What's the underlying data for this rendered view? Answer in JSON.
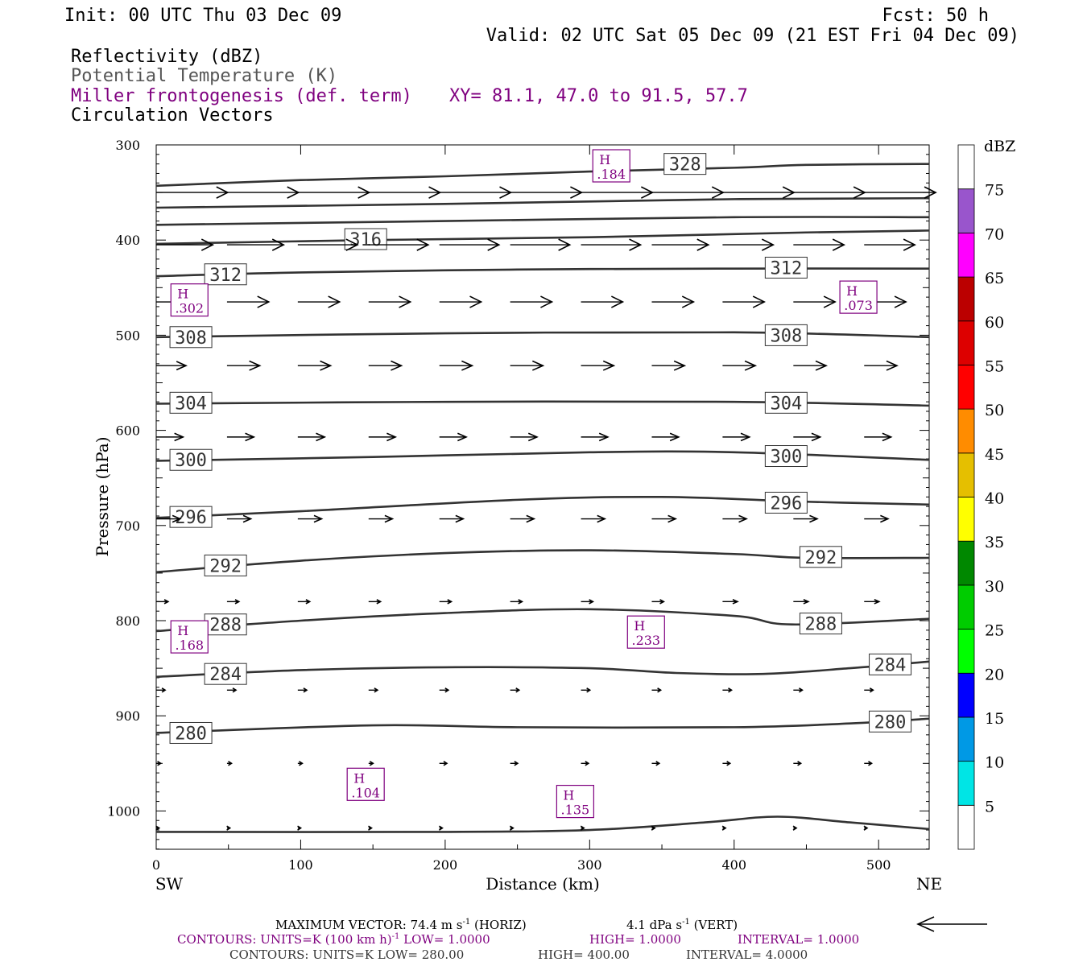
{
  "header": {
    "init": "Init: 00 UTC Thu 03 Dec 09",
    "fcst": "Fcst:   50 h",
    "valid": "Valid: 02 UTC Sat 05 Dec 09 (21 EST Fri 04 Dec 09)",
    "field1": "Reflectivity (dBZ)",
    "field2": "Potential Temperature (K)",
    "field3": "Miller frontogenesis (def. term)",
    "xy": "XY=  81.1, 47.0 to  91.5, 57.7",
    "field4": "Circulation Vectors"
  },
  "colors": {
    "purple": "#7f007f",
    "gray": "#555555",
    "contour": "#333333"
  },
  "chart_data": {
    "type": "cross-section",
    "xlabel": "Distance (km)",
    "ylabel": "Pressure (hPa)",
    "xlim": [
      0,
      535
    ],
    "ylim": [
      1040,
      300
    ],
    "x_ticks": [
      0,
      100,
      200,
      300,
      400,
      500
    ],
    "y_ticks": [
      300,
      400,
      500,
      600,
      700,
      800,
      900,
      1000
    ],
    "left_end_label": "SW",
    "right_end_label": "NE",
    "theta_contours": [
      {
        "label": "328",
        "points": [
          [
            0,
            343
          ],
          [
            100,
            337
          ],
          [
            200,
            333
          ],
          [
            300,
            328
          ],
          [
            400,
            324
          ],
          [
            450,
            321
          ],
          [
            535,
            320
          ]
        ],
        "label_at": [
          [
            366,
            320
          ]
        ]
      },
      {
        "label": "",
        "points": [
          [
            0,
            366
          ],
          [
            200,
            362
          ],
          [
            400,
            357
          ],
          [
            535,
            356
          ]
        ],
        "label_at": []
      },
      {
        "label": "",
        "points": [
          [
            0,
            384
          ],
          [
            200,
            380
          ],
          [
            400,
            376
          ],
          [
            535,
            376
          ]
        ],
        "label_at": []
      },
      {
        "label": "316",
        "points": [
          [
            0,
            404
          ],
          [
            150,
            400
          ],
          [
            300,
            397
          ],
          [
            450,
            392
          ],
          [
            535,
            390
          ]
        ],
        "label_at": [
          [
            145,
            399
          ]
        ]
      },
      {
        "label": "312",
        "points": [
          [
            0,
            438
          ],
          [
            100,
            434
          ],
          [
            250,
            431
          ],
          [
            400,
            430
          ],
          [
            535,
            430
          ]
        ],
        "label_at": [
          [
            48,
            436
          ],
          [
            436,
            429
          ]
        ]
      },
      {
        "label": "308",
        "points": [
          [
            0,
            502
          ],
          [
            200,
            498
          ],
          [
            400,
            497
          ],
          [
            535,
            502
          ]
        ],
        "label_at": [
          [
            24,
            502
          ],
          [
            436,
            500
          ]
        ]
      },
      {
        "label": "304",
        "points": [
          [
            0,
            572
          ],
          [
            200,
            570
          ],
          [
            400,
            570
          ],
          [
            535,
            574
          ]
        ],
        "label_at": [
          [
            24,
            571
          ],
          [
            436,
            571
          ]
        ]
      },
      {
        "label": "300",
        "points": [
          [
            0,
            632
          ],
          [
            150,
            628
          ],
          [
            300,
            623
          ],
          [
            400,
            623
          ],
          [
            535,
            631
          ]
        ],
        "label_at": [
          [
            24,
            631
          ],
          [
            436,
            627
          ]
        ]
      },
      {
        "label": "296",
        "points": [
          [
            0,
            692
          ],
          [
            100,
            685
          ],
          [
            250,
            673
          ],
          [
            350,
            670
          ],
          [
            450,
            675
          ],
          [
            535,
            678
          ]
        ],
        "label_at": [
          [
            24,
            691
          ],
          [
            436,
            676
          ]
        ]
      },
      {
        "label": "292",
        "points": [
          [
            0,
            749
          ],
          [
            100,
            737
          ],
          [
            200,
            729
          ],
          [
            300,
            726
          ],
          [
            400,
            730
          ],
          [
            450,
            734
          ],
          [
            535,
            734
          ]
        ],
        "label_at": [
          [
            48,
            742
          ],
          [
            460,
            733
          ]
        ]
      },
      {
        "label": "288",
        "points": [
          [
            0,
            811
          ],
          [
            100,
            800
          ],
          [
            200,
            792
          ],
          [
            300,
            788
          ],
          [
            400,
            795
          ],
          [
            440,
            804
          ],
          [
            535,
            798
          ]
        ],
        "label_at": [
          [
            48,
            804
          ],
          [
            460,
            803
          ]
        ]
      },
      {
        "label": "284",
        "points": [
          [
            0,
            859
          ],
          [
            100,
            852
          ],
          [
            200,
            849
          ],
          [
            300,
            850
          ],
          [
            360,
            855
          ],
          [
            420,
            856
          ],
          [
            480,
            850
          ],
          [
            535,
            843
          ]
        ],
        "label_at": [
          [
            48,
            856
          ],
          [
            508,
            846
          ]
        ]
      },
      {
        "label": "280",
        "points": [
          [
            0,
            918
          ],
          [
            150,
            910
          ],
          [
            250,
            912
          ],
          [
            400,
            912
          ],
          [
            480,
            908
          ],
          [
            535,
            903
          ]
        ],
        "label_at": [
          [
            24,
            918
          ],
          [
            508,
            906
          ]
        ]
      },
      {
        "label": "",
        "points": [
          [
            0,
            1022
          ],
          [
            200,
            1022
          ],
          [
            300,
            1020
          ],
          [
            380,
            1012
          ],
          [
            430,
            1006
          ],
          [
            480,
            1012
          ],
          [
            535,
            1019
          ]
        ],
        "label_at": []
      }
    ],
    "frontogenesis_maxima": [
      {
        "label": "H",
        "value": ".184",
        "x": 315,
        "p": 322
      },
      {
        "label": "H",
        "value": ".302",
        "x": 23,
        "p": 463
      },
      {
        "label": "H",
        "value": ".073",
        "x": 486,
        "p": 460
      },
      {
        "label": "H",
        "value": ".168",
        "x": 23,
        "p": 817
      },
      {
        "label": "H",
        "value": ".233",
        "x": 339,
        "p": 812
      },
      {
        "label": "H",
        "value": ".104",
        "x": 145,
        "p": 972
      },
      {
        "label": "H",
        "value": ".135",
        "x": 290,
        "p": 990
      }
    ],
    "circulation_vectors": {
      "x": [
        0,
        49,
        98,
        147,
        196,
        245,
        294,
        343,
        392,
        441,
        490
      ],
      "rows": [
        {
          "p": 350,
          "u": [
            48,
            48,
            48,
            48,
            48,
            48,
            48,
            48,
            48,
            48,
            48
          ],
          "w": [
            0,
            0,
            0,
            0,
            0,
            0,
            0,
            0,
            0,
            0,
            0
          ]
        },
        {
          "p": 405,
          "u": [
            38,
            38,
            40,
            40,
            40,
            40,
            40,
            38,
            34,
            34,
            34
          ],
          "w": [
            0,
            0,
            0,
            0,
            0,
            0,
            0,
            0,
            0,
            0,
            0
          ]
        },
        {
          "p": 465,
          "u": [
            28,
            28,
            28,
            28,
            28,
            28,
            28,
            28,
            28,
            28,
            28
          ],
          "w": [
            0,
            0,
            0,
            0,
            0,
            0,
            0,
            0,
            0,
            0,
            0
          ]
        },
        {
          "p": 532,
          "u": [
            20,
            22,
            22,
            22,
            22,
            22,
            22,
            22,
            22,
            22,
            22
          ],
          "w": [
            0,
            0,
            0,
            0,
            0,
            0,
            0,
            0,
            0,
            0,
            0
          ]
        },
        {
          "p": 607,
          "u": [
            18,
            18,
            18,
            18,
            18,
            18,
            18,
            18,
            18,
            18,
            18
          ],
          "w": [
            0,
            0,
            0,
            0,
            0,
            0,
            0,
            0,
            0,
            0,
            0
          ]
        },
        {
          "p": 693,
          "u": [
            16,
            16,
            16,
            16,
            16,
            16,
            16,
            16,
            16,
            16,
            16
          ],
          "w": [
            0,
            0,
            0,
            0,
            0,
            0,
            0,
            0,
            0,
            0,
            0
          ]
        },
        {
          "p": 780,
          "u": [
            8,
            8,
            8,
            8,
            8,
            8,
            8,
            8,
            10,
            10,
            10
          ],
          "w": [
            0,
            0,
            0,
            0,
            0,
            0,
            0,
            0,
            0,
            0,
            0
          ]
        },
        {
          "p": 873,
          "u": [
            6,
            6,
            6,
            6,
            6,
            6,
            6,
            6,
            6,
            6,
            6
          ],
          "w": [
            0,
            0,
            0,
            0,
            0,
            0,
            0,
            0,
            0,
            0,
            0
          ]
        },
        {
          "p": 950,
          "u": [
            3,
            3,
            3,
            3,
            5,
            5,
            5,
            5,
            5,
            5,
            5
          ],
          "w": [
            0,
            0,
            0,
            0,
            0,
            0,
            0,
            0,
            0,
            0,
            0
          ]
        },
        {
          "p": 1018,
          "u": [
            2,
            2,
            2,
            2,
            2,
            2,
            2,
            2,
            2,
            2,
            2
          ],
          "w": [
            0,
            0,
            0,
            0,
            0,
            0,
            0,
            0,
            0,
            0,
            0
          ]
        }
      ]
    },
    "colorbar": {
      "unit": "dBZ",
      "levels": [
        "5",
        "10",
        "15",
        "20",
        "25",
        "30",
        "35",
        "40",
        "45",
        "50",
        "55",
        "60",
        "65",
        "70",
        "75"
      ],
      "colors": [
        "#ffffff",
        "#00e5e5",
        "#0099e5",
        "#0000ff",
        "#00ff00",
        "#00cc00",
        "#008800",
        "#ffff00",
        "#e5bf00",
        "#ff8c00",
        "#ff0000",
        "#dd0000",
        "#bb0000",
        "#ff00ff",
        "#9955cc",
        "#ffffff"
      ]
    }
  },
  "footer": {
    "line1_a": "MAXIMUM VECTOR:  74.4 m s",
    "line1_b": "-1",
    "line1_c": " (HORIZ)",
    "line1_d": "4.1 dPa s",
    "line1_e": "-1",
    "line1_f": " (VERT)",
    "line2_a": "CONTOURS:  UNITS=K (100 km h)",
    "line2_b": "-1",
    "line2_c": "  LOW=   1.0000",
    "line2_d": "HIGH=   1.0000",
    "line2_e": "INTERVAL=    1.0000",
    "line3_a": "CONTOURS:  UNITS=K  LOW=   280.00",
    "line3_b": "HIGH=   400.00",
    "line3_c": "INTERVAL=    4.0000"
  }
}
